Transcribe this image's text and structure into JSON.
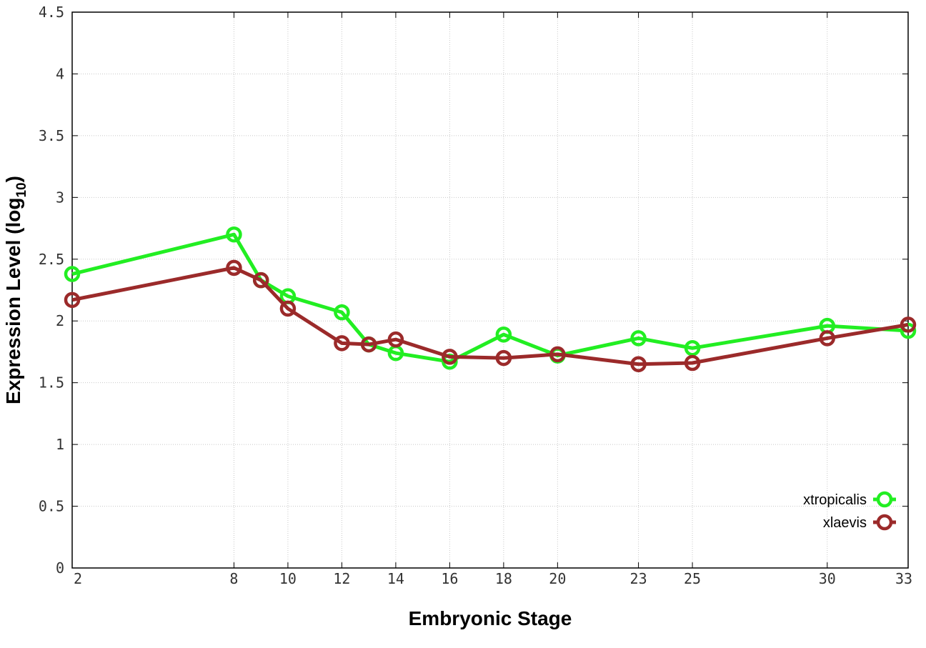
{
  "chart_data": {
    "type": "line",
    "xlabel": "Embryonic Stage",
    "ylabel": "Expression Level (log",
    "ylabel_subscript": "10",
    "ylabel_close": ")",
    "ylim": [
      0,
      4.5
    ],
    "xlim": [
      2,
      33
    ],
    "x_ticks": [
      2,
      8,
      10,
      12,
      14,
      16,
      18,
      20,
      23,
      25,
      30,
      33
    ],
    "x_tick_labels": [
      "2",
      "8",
      "10",
      "12",
      "14",
      "16",
      "18",
      "20",
      "23",
      "25",
      "30",
      "33"
    ],
    "y_ticks": [
      0,
      0.5,
      1,
      1.5,
      2,
      2.5,
      3,
      3.5,
      4,
      4.5
    ],
    "y_tick_labels": [
      "0",
      "0.5",
      "1",
      "1.5",
      "2",
      "2.5",
      "3",
      "3.5",
      "4",
      "4.5"
    ],
    "grid": true,
    "legend_position": "bottom-right",
    "series": [
      {
        "name": "xtropicalis",
        "color": "#22ee22",
        "points": [
          {
            "x": 2,
            "y": 2.38
          },
          {
            "x": 8,
            "y": 2.7
          },
          {
            "x": 9,
            "y": 2.33
          },
          {
            "x": 10,
            "y": 2.2
          },
          {
            "x": 12,
            "y": 2.07
          },
          {
            "x": 13,
            "y": 1.81
          },
          {
            "x": 14,
            "y": 1.74
          },
          {
            "x": 16,
            "y": 1.67
          },
          {
            "x": 18,
            "y": 1.89
          },
          {
            "x": 20,
            "y": 1.72
          },
          {
            "x": 23,
            "y": 1.86
          },
          {
            "x": 25,
            "y": 1.78
          },
          {
            "x": 30,
            "y": 1.96
          },
          {
            "x": 33,
            "y": 1.92
          }
        ]
      },
      {
        "name": "xlaevis",
        "color": "#9b2a2a",
        "points": [
          {
            "x": 2,
            "y": 2.17
          },
          {
            "x": 8,
            "y": 2.43
          },
          {
            "x": 9,
            "y": 2.33
          },
          {
            "x": 10,
            "y": 2.1
          },
          {
            "x": 12,
            "y": 1.82
          },
          {
            "x": 13,
            "y": 1.81
          },
          {
            "x": 14,
            "y": 1.85
          },
          {
            "x": 16,
            "y": 1.71
          },
          {
            "x": 18,
            "y": 1.7
          },
          {
            "x": 20,
            "y": 1.73
          },
          {
            "x": 23,
            "y": 1.65
          },
          {
            "x": 25,
            "y": 1.66
          },
          {
            "x": 30,
            "y": 1.86
          },
          {
            "x": 33,
            "y": 1.97
          }
        ]
      }
    ]
  }
}
